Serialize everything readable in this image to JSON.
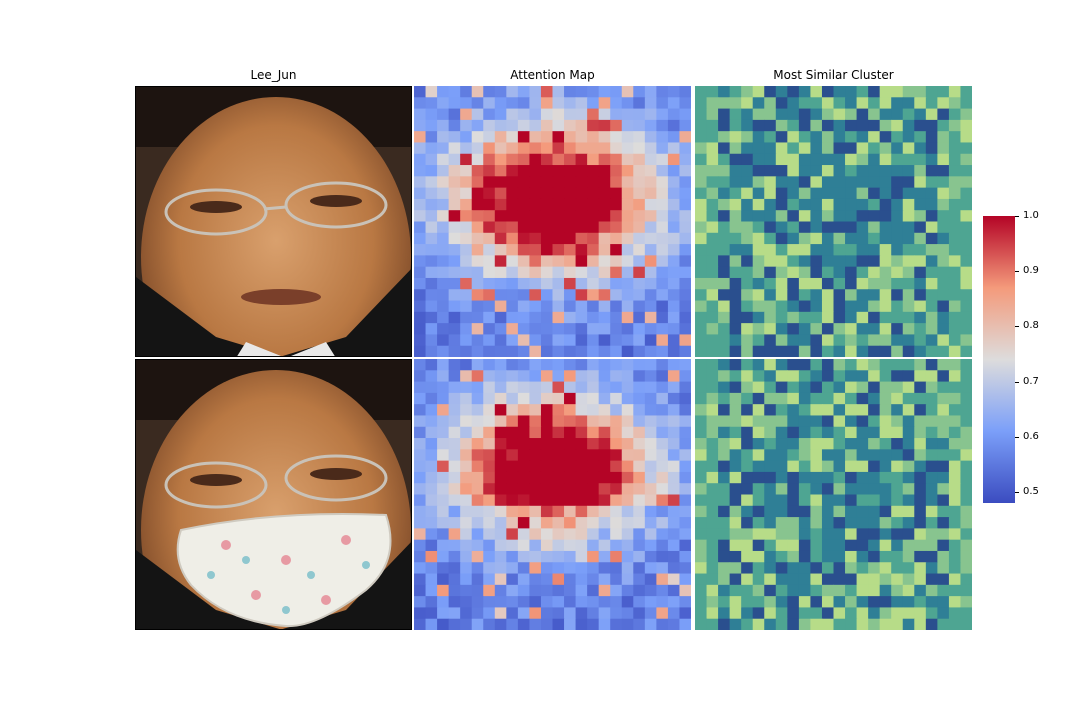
{
  "chart_data": {
    "type": "heatmap",
    "titles": [
      "Lee_Jun",
      "Attention Map",
      "Most Similar Cluster"
    ],
    "grid_size": 24,
    "colorbar": {
      "colormap": "coolwarm",
      "min": 0.48,
      "max": 1.0,
      "ticks": [
        "1.0",
        "0.9",
        "0.8",
        "0.7",
        "0.6",
        "0.5"
      ],
      "tick_values": [
        1.0,
        0.9,
        0.8,
        0.7,
        0.6,
        0.5
      ]
    },
    "rows": [
      "unmasked",
      "masked"
    ],
    "cluster_colors": [
      "#2a4f8e",
      "#2f7f96",
      "#4ea592",
      "#88c48f",
      "#b7dc88"
    ]
  }
}
